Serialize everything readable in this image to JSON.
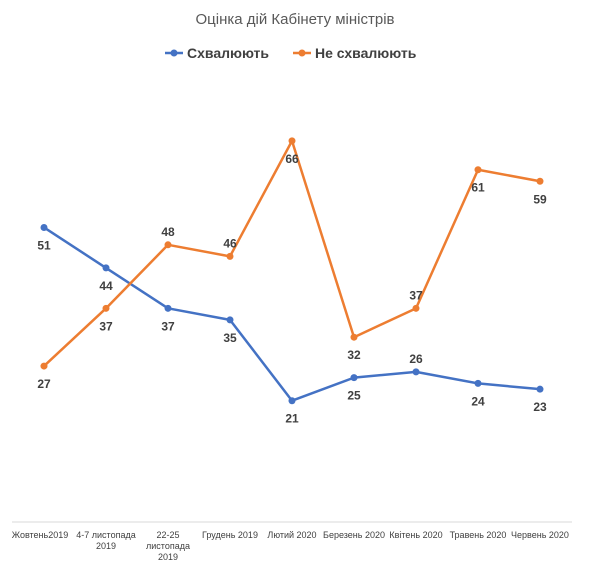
{
  "chart_data": {
    "type": "line",
    "title": "Оцінка дій Кабінету міністрів",
    "legend_position": "top",
    "grid": false,
    "categories": [
      [
        "Жовтень2019"
      ],
      [
        "4-7 листопада",
        "2019"
      ],
      [
        "22-25",
        "листопада",
        "2019"
      ],
      [
        "Грудень 2019"
      ],
      [
        "Лютий 2020"
      ],
      [
        "Березень 2020"
      ],
      [
        "Квітень 2020"
      ],
      [
        "Травень 2020"
      ],
      [
        "Червень 2020"
      ]
    ],
    "ylim": [
      0,
      80
    ],
    "series": [
      {
        "name": "Схвалюють",
        "color": "#4472C4",
        "values": [
          51,
          44,
          37,
          35,
          21,
          25,
          26,
          24,
          23
        ]
      },
      {
        "name": "Не схвалюють",
        "color": "#ED7D31",
        "values": [
          27,
          37,
          48,
          46,
          66,
          32,
          37,
          61,
          59
        ]
      }
    ]
  }
}
